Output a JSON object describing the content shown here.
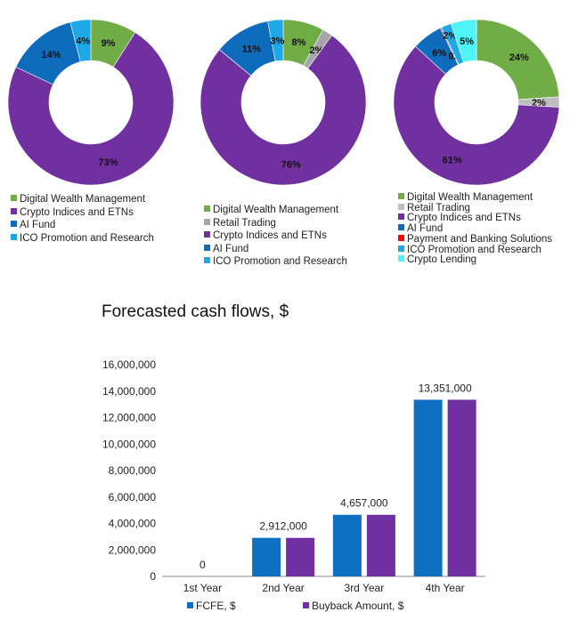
{
  "chart_data": [
    {
      "type": "pie",
      "donut": true,
      "slices": [
        {
          "name": "Digital Wealth Management",
          "value": 9,
          "label": "9%",
          "color": "#70ad47"
        },
        {
          "name": "Crypto Indices and ETNs",
          "value": 73,
          "label": "73%",
          "color": "#7030a0"
        },
        {
          "name": "AI Fund",
          "value": 14,
          "label": "14%",
          "color": "#0f6cbd"
        },
        {
          "name": "ICO Promotion and Research",
          "value": 4,
          "label": "4%",
          "color": "#1fa8e8"
        }
      ]
    },
    {
      "type": "pie",
      "donut": true,
      "slices": [
        {
          "name": "Digital Wealth Management",
          "value": 8,
          "label": "8%",
          "color": "#70ad47"
        },
        {
          "name": "Retail Trading",
          "value": 2,
          "label": "2%",
          "color": "#a6a6a6"
        },
        {
          "name": "Crypto Indices and ETNs",
          "value": 76,
          "label": "76%",
          "color": "#7030a0"
        },
        {
          "name": "AI Fund",
          "value": 11,
          "label": "11%",
          "color": "#0f6cbd"
        },
        {
          "name": "ICO Promotion and Research",
          "value": 3,
          "label": "3%",
          "color": "#1fa8e8"
        }
      ]
    },
    {
      "type": "pie",
      "donut": true,
      "slices": [
        {
          "name": "Digital Wealth Management",
          "value": 24,
          "label": "24%",
          "color": "#70ad47"
        },
        {
          "name": "Retail Trading",
          "value": 2,
          "label": "2%",
          "color": "#bfbfbf"
        },
        {
          "name": "Crypto Indices and ETNs",
          "value": 61,
          "label": "61%",
          "color": "#7030a0"
        },
        {
          "name": "AI Fund",
          "value": 6,
          "label": "6%",
          "color": "#0f6cbd"
        },
        {
          "name": "Payment and Banking Solutions",
          "value": 0.21,
          "label": "0.21%",
          "color": "#ff0000"
        },
        {
          "name": "ICO Promotion and Research",
          "value": 2,
          "label": "2%",
          "color": "#1fa8e8"
        },
        {
          "name": "Crypto Lending",
          "value": 5,
          "label": "5%",
          "color": "#4ff4f8"
        }
      ]
    },
    {
      "type": "bar",
      "title": "Forecasted cash flows, $",
      "categories": [
        "1st Year",
        "2nd Year",
        "3rd Year",
        "4th Year"
      ],
      "series": [
        {
          "name": "FCFE, $",
          "values": [
            0,
            2912000,
            4657000,
            13351000
          ],
          "color": "#0f6fc0"
        },
        {
          "name": "Buyback Amount, $",
          "values": [
            0,
            2912000,
            4657000,
            13351000
          ],
          "color": "#7030a0"
        }
      ],
      "data_labels": [
        "0",
        "2,912,000",
        "4,657,000",
        "13,351,000"
      ],
      "ylim": [
        0,
        16000000
      ],
      "yticks": [
        "0",
        "2,000,000",
        "4,000,000",
        "6,000,000",
        "8,000,000",
        "10,000,000",
        "12,000,000",
        "14,000,000",
        "16,000,000"
      ],
      "grid": false,
      "legend": "bottom"
    }
  ]
}
